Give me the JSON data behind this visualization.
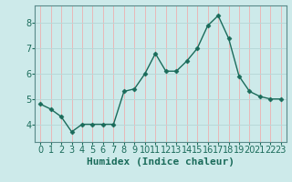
{
  "x": [
    0,
    1,
    2,
    3,
    4,
    5,
    6,
    7,
    8,
    9,
    10,
    11,
    12,
    13,
    14,
    15,
    16,
    17,
    18,
    19,
    20,
    21,
    22,
    23
  ],
  "y": [
    4.8,
    4.6,
    4.3,
    3.7,
    4.0,
    4.0,
    4.0,
    4.0,
    5.3,
    5.4,
    6.0,
    6.8,
    6.1,
    6.1,
    6.5,
    7.0,
    7.9,
    8.3,
    7.4,
    5.9,
    5.3,
    5.1,
    5.0,
    5.0
  ],
  "line_color": "#1a6b5a",
  "marker": "D",
  "marker_size": 2.5,
  "bg_color": "#cdeaea",
  "grid_color_major": "#b8d8d8",
  "grid_color_minor": "#e8b8b8",
  "xlabel": "Humidex (Indice chaleur)",
  "ylim": [
    3.3,
    8.7
  ],
  "xlim": [
    -0.5,
    23.5
  ],
  "yticks": [
    4,
    5,
    6,
    7,
    8
  ],
  "xticks": [
    0,
    1,
    2,
    3,
    4,
    5,
    6,
    7,
    8,
    9,
    10,
    11,
    12,
    13,
    14,
    15,
    16,
    17,
    18,
    19,
    20,
    21,
    22,
    23
  ],
  "xlabel_fontsize": 8,
  "tick_fontsize": 7,
  "spine_color": "#5a8a8a",
  "tick_color": "#1a6b5a"
}
